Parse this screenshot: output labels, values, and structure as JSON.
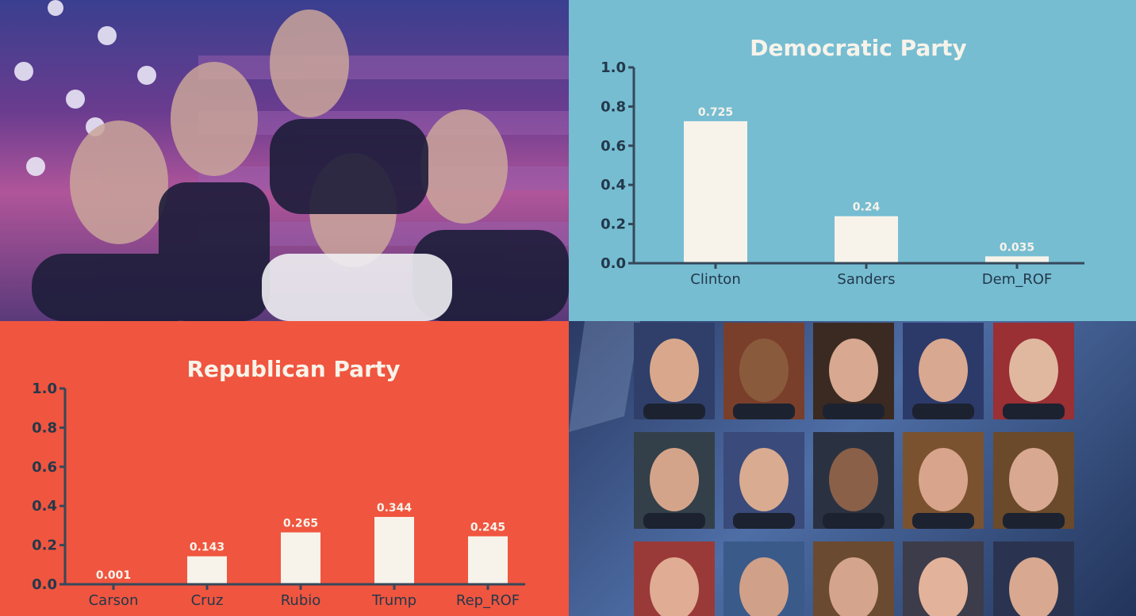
{
  "colors": {
    "dem_background": "#76bdd2",
    "rep_background": "#f0553f",
    "bar_fill": "#f7f3ea",
    "axis": "#36485a"
  },
  "chart_data": [
    {
      "type": "bar",
      "title": "Democratic Party",
      "categories": [
        "Clinton",
        "Sanders",
        "Dem_ROF"
      ],
      "values": [
        0.725,
        0.24,
        0.035
      ],
      "value_labels": [
        "0.725",
        "0.24",
        "0.035"
      ],
      "yticks": [
        "0.0",
        "0.2",
        "0.4",
        "0.6",
        "0.8",
        "1.0"
      ],
      "ylim": [
        0,
        1
      ],
      "grid": false,
      "legend": "none"
    },
    {
      "type": "bar",
      "title": "Republican Party",
      "categories": [
        "Carson",
        "Cruz",
        "Rubio",
        "Trump",
        "Rep_ROF"
      ],
      "values": [
        0.001,
        0.143,
        0.265,
        0.344,
        0.245
      ],
      "value_labels": [
        "0.001",
        "0.143",
        "0.265",
        "0.344",
        "0.245"
      ],
      "yticks": [
        "0.0",
        "0.2",
        "0.4",
        "0.6",
        "0.8",
        "1.0"
      ],
      "ylim": [
        0,
        1
      ],
      "grid": false,
      "legend": "none"
    }
  ]
}
